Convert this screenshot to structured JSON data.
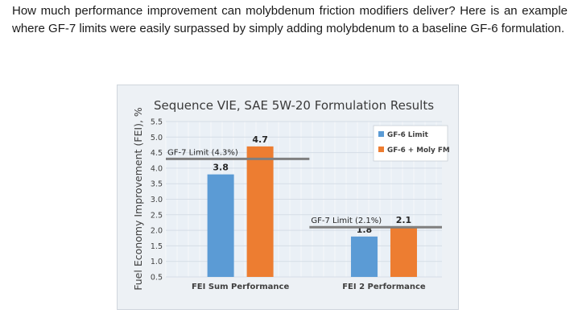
{
  "intro_text": "How much performance improvement can molybdenum friction modifiers deliver? Here is an example where GF-7 limits were easily surpassed by simply adding molybdenum to a baseline GF-6 formulation.",
  "chart_data": {
    "type": "bar",
    "title": "Sequence VIE, SAE 5W-20 Formulation Results",
    "ylabel": "Fuel Economy Improvement (FEI), %",
    "xlabel": "",
    "categories": [
      "FEI Sum Performance",
      "FEI 2 Performance"
    ],
    "series": [
      {
        "name": "GF-6 Limit",
        "values": [
          3.8,
          1.8
        ],
        "color": "#5b9bd5"
      },
      {
        "name": "GF-6 + Moly FM",
        "values": [
          4.7,
          2.1
        ],
        "color": "#ed7d31"
      }
    ],
    "value_labels": [
      [
        "3.8",
        "1.8"
      ],
      [
        "4.7",
        "2.1"
      ]
    ],
    "ylim": [
      0.5,
      5.5
    ],
    "yticks": [
      "0.5",
      "1.0",
      "1.5",
      "2.0",
      "2.5",
      "3.0",
      "3.5",
      "4.0",
      "4.5",
      "5.0",
      "5.5"
    ],
    "reference_lines": [
      {
        "label": "GF-7 Limit (4.3%)",
        "value": 4.3,
        "category_index": 0
      },
      {
        "label": "GF-7 Limit (2.1%)",
        "value": 2.1,
        "category_index": 1
      }
    ],
    "grid": true,
    "legend_position": "top-right",
    "colors": {
      "background": "#edf1f5",
      "grid": "#ffffff",
      "limit_line": "#7f7f7f",
      "axis_text": "#404040",
      "title_text": "#3a3a3a"
    }
  }
}
